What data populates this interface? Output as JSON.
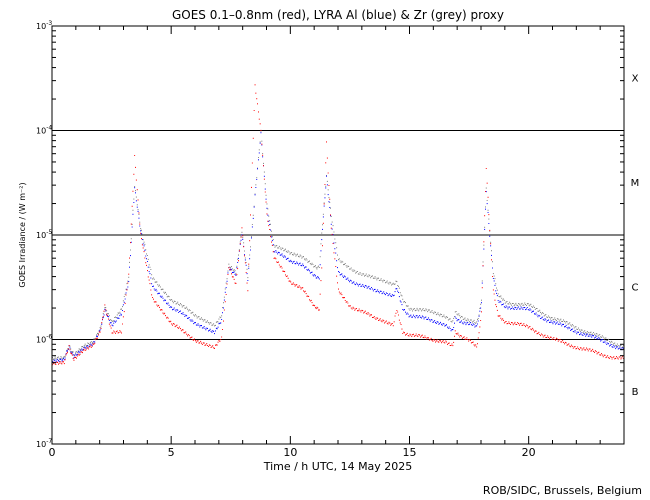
{
  "chart_data": {
    "type": "line",
    "title": "GOES 0.1–0.8nm (red), LYRA Al (blue) & Zr (grey) proxy",
    "xlabel": "Time / h UTC, 14 May 2025",
    "ylabel": "GOES Irradiance / (W m⁻²)",
    "y_scale": "log",
    "xlim": [
      0,
      24
    ],
    "ylim": [
      1e-07,
      0.001
    ],
    "x_ticks": [
      0,
      5,
      10,
      15,
      20
    ],
    "y_ticks": [
      {
        "value": 1e-07,
        "base": "10",
        "exp": "-7"
      },
      {
        "value": 1e-06,
        "base": "10",
        "exp": "-6"
      },
      {
        "value": 1e-05,
        "base": "10",
        "exp": "-5"
      },
      {
        "value": 0.0001,
        "base": "10",
        "exp": "-4"
      },
      {
        "value": 0.001,
        "base": "10",
        "exp": "-3"
      }
    ],
    "reference_lines": [
      1e-06,
      1e-05,
      0.0001
    ],
    "flare_classes": [
      {
        "label": "X",
        "value": 0.00032
      },
      {
        "label": "M",
        "value": 3.2e-05
      },
      {
        "label": "C",
        "value": 3.2e-06
      },
      {
        "label": "B",
        "value": 3.2e-07
      }
    ],
    "series": [
      {
        "key": "grey",
        "color": "#808080",
        "x": [
          0,
          0.5,
          0.7,
          0.9,
          1.3,
          1.7,
          2.0,
          2.2,
          2.5,
          2.9,
          3.2,
          3.45,
          3.7,
          4.2,
          5.0,
          6.0,
          6.8,
          7.1,
          7.4,
          7.7,
          7.95,
          8.2,
          8.5,
          8.75,
          9.0,
          9.3,
          10.0,
          10.5,
          11.0,
          11.2,
          11.3,
          11.5,
          11.7,
          12.0,
          12.5,
          13.5,
          14.3,
          14.45,
          14.7,
          15.0,
          16.0,
          16.5,
          16.8,
          16.9,
          17.8,
          17.9,
          18.0,
          18.2,
          18.5,
          18.7,
          19.0,
          20.0,
          21.0,
          22.0,
          23.0,
          24.0
        ],
        "y": [
          6.5e-07,
          6.5e-07,
          9e-07,
          7e-07,
          8.5e-07,
          9.5e-07,
          1.3e-06,
          2e-06,
          1.5e-06,
          2e-06,
          4e-06,
          3e-05,
          1.2e-05,
          4e-06,
          2.4e-06,
          1.7e-06,
          1.4e-06,
          1.7e-06,
          5e-06,
          4.5e-06,
          1.1e-05,
          4e-06,
          2.5e-05,
          0.0001,
          2e-05,
          8e-06,
          6.5e-06,
          6e-06,
          5e-06,
          5e-06,
          1e-05,
          3.8e-05,
          1.5e-05,
          6e-06,
          4.8e-06,
          3.8e-06,
          3.3e-06,
          3.6e-06,
          2.4e-06,
          2e-06,
          1.8e-06,
          1.6e-06,
          1.5e-06,
          1.8e-06,
          1.4e-06,
          1.7e-06,
          2.5e-06,
          2.7e-05,
          4.5e-06,
          2.6e-06,
          2.3e-06,
          2.1e-06,
          1.6e-06,
          1.3e-06,
          1.05e-06,
          8.5e-07
        ]
      },
      {
        "key": "blue",
        "color": "#0000ff",
        "x": [
          0,
          0.5,
          0.7,
          0.9,
          1.3,
          1.7,
          2.0,
          2.2,
          2.5,
          2.9,
          3.2,
          3.45,
          3.7,
          4.2,
          5.0,
          6.0,
          6.8,
          7.1,
          7.4,
          7.7,
          7.95,
          8.2,
          8.5,
          8.75,
          9.0,
          9.3,
          10.0,
          10.5,
          11.0,
          11.2,
          11.3,
          11.5,
          11.7,
          12.0,
          12.5,
          13.5,
          14.3,
          14.45,
          14.7,
          15.0,
          16.0,
          16.5,
          16.8,
          16.9,
          17.8,
          17.9,
          18.0,
          18.2,
          18.5,
          18.7,
          19.0,
          20.0,
          21.0,
          22.0,
          23.0,
          24.0
        ],
        "y": [
          6.2e-07,
          6.3e-07,
          8.7e-07,
          6.8e-07,
          8.2e-07,
          9.2e-07,
          1.25e-06,
          1.9e-06,
          1.4e-06,
          1.8e-06,
          3.5e-06,
          2.8e-05,
          1.1e-05,
          3.3e-06,
          2e-06,
          1.45e-06,
          1.2e-06,
          1.5e-06,
          4.8e-06,
          4.3e-06,
          1.05e-05,
          3.8e-06,
          2.4e-05,
          9.5e-05,
          1.8e-05,
          7e-06,
          5.5e-06,
          5e-06,
          4e-06,
          4e-06,
          9e-06,
          3.6e-05,
          1.3e-05,
          4.5e-06,
          3.7e-06,
          2.9e-06,
          2.6e-06,
          3.2e-06,
          2e-06,
          1.7e-06,
          1.5e-06,
          1.35e-06,
          1.25e-06,
          1.6e-06,
          1.3e-06,
          1.6e-06,
          2.3e-06,
          2.6e-05,
          4e-06,
          2.3e-06,
          2.1e-06,
          1.9e-06,
          1.45e-06,
          1.2e-06,
          9.8e-07,
          8e-07
        ]
      },
      {
        "key": "red",
        "color": "#ff0000",
        "x": [
          0,
          0.5,
          0.7,
          0.9,
          1.3,
          1.7,
          2.0,
          2.2,
          2.5,
          2.9,
          3.2,
          3.45,
          3.7,
          4.2,
          5.0,
          6.0,
          6.8,
          7.1,
          7.4,
          7.7,
          7.95,
          8.2,
          8.5,
          8.75,
          9.0,
          9.3,
          10.0,
          10.5,
          11.0,
          11.2,
          11.3,
          11.5,
          11.7,
          12.0,
          12.5,
          13.5,
          14.3,
          14.45,
          14.7,
          15.0,
          16.0,
          16.5,
          16.8,
          16.9,
          17.8,
          17.9,
          18.0,
          18.2,
          18.5,
          18.7,
          19.0,
          20.0,
          21.0,
          22.0,
          23.0,
          24.0
        ],
        "y": [
          6e-07,
          6e-07,
          8.5e-07,
          6.5e-07,
          8e-07,
          9e-07,
          1.2e-06,
          2.1e-06,
          1.2e-06,
          1.2e-06,
          4e-06,
          5.5e-05,
          1e-05,
          2.5e-06,
          1.4e-06,
          1e-06,
          8.5e-07,
          1e-06,
          5e-06,
          3.5e-06,
          1.2e-05,
          3e-06,
          0.00027,
          0.0001,
          1.6e-05,
          6e-06,
          3.5e-06,
          3e-06,
          2e-06,
          2e-06,
          5e-06,
          7.5e-05,
          1.2e-05,
          3e-06,
          2.1e-06,
          1.6e-06,
          1.4e-06,
          2e-06,
          1.2e-06,
          1.1e-06,
          1e-06,
          9.5e-07,
          9e-07,
          1.2e-06,
          8.5e-07,
          1.1e-06,
          1.8e-06,
          4.5e-05,
          3e-06,
          1.7e-06,
          1.5e-06,
          1.3e-06,
          1e-06,
          8.5e-07,
          7.2e-07,
          6.5e-07
        ]
      }
    ]
  },
  "footer": {
    "credit": "ROB/SIDC, Brussels, Belgium"
  }
}
